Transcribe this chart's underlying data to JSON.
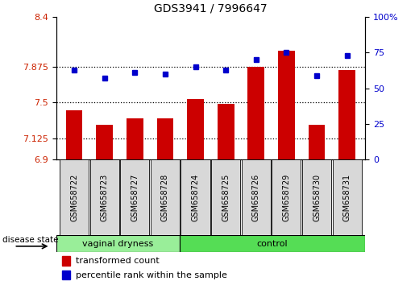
{
  "title": "GDS3941 / 7996647",
  "samples": [
    "GSM658722",
    "GSM658723",
    "GSM658727",
    "GSM658728",
    "GSM658724",
    "GSM658725",
    "GSM658726",
    "GSM658729",
    "GSM658730",
    "GSM658731"
  ],
  "transformed_counts": [
    7.42,
    7.27,
    7.33,
    7.33,
    7.54,
    7.49,
    7.875,
    8.05,
    7.27,
    7.84
  ],
  "percentile_ranks": [
    63,
    57,
    61,
    60,
    65,
    63,
    70,
    75,
    59,
    73
  ],
  "ylim_left": [
    6.9,
    8.4
  ],
  "ylim_right": [
    0,
    100
  ],
  "yticks_left": [
    6.9,
    7.125,
    7.5,
    7.875,
    8.4
  ],
  "ytick_labels_left": [
    "6.9",
    "7.125",
    "7.5",
    "7.875",
    "8.4"
  ],
  "yticks_right": [
    0,
    25,
    50,
    75,
    100
  ],
  "ytick_labels_right": [
    "0",
    "25",
    "50",
    "75",
    "100%"
  ],
  "hlines": [
    7.125,
    7.5,
    7.875
  ],
  "bar_color": "#cc0000",
  "dot_color": "#0000cc",
  "bar_bottom": 6.9,
  "group_vd_label": "vaginal dryness",
  "group_ctrl_label": "control",
  "group_vd_count": 4,
  "group_ctrl_count": 6,
  "group_vd_color": "#99ee99",
  "group_ctrl_color": "#55dd55",
  "group_label": "disease state",
  "legend_bar_label": "transformed count",
  "legend_dot_label": "percentile rank within the sample",
  "bar_width": 0.55,
  "background_color": "#ffffff",
  "tick_bg_color": "#d8d8d8",
  "title_fontsize": 10,
  "tick_label_fontsize": 7,
  "left_tick_color": "#cc2200",
  "right_tick_color": "#0000cc"
}
